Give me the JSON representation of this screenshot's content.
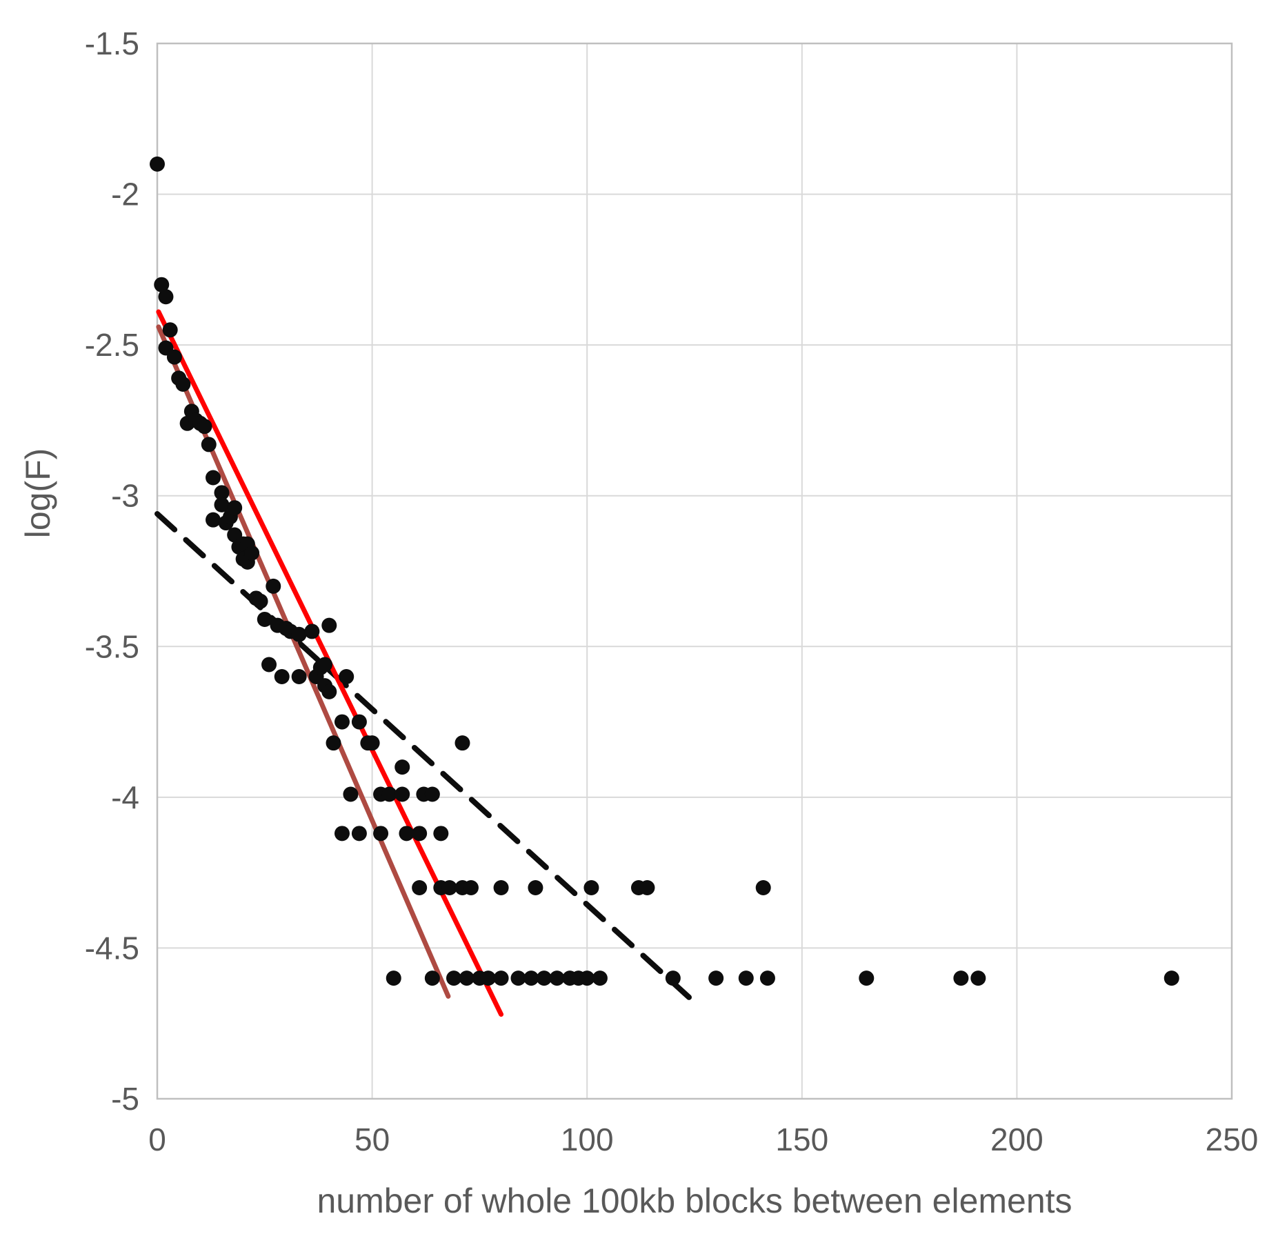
{
  "page": {
    "background_color": "#ffffff"
  },
  "chart_data": {
    "type": "scatter",
    "title": "",
    "xlabel": "number of whole 100kb blocks between elements",
    "ylabel": "log(F)",
    "xlim": [
      0,
      250
    ],
    "ylim": [
      -5,
      -1.5
    ],
    "x_ticks": {
      "values": [
        0,
        50,
        100,
        150,
        200,
        250
      ],
      "labels": [
        "0",
        "50",
        "100",
        "150",
        "200",
        "250"
      ]
    },
    "y_ticks": {
      "values": [
        -1.5,
        -2,
        -2.5,
        -3,
        -3.5,
        -4,
        -4.5,
        -5
      ],
      "labels": [
        "-1.5",
        "-2",
        "-2.5",
        "-3",
        "-3.5",
        "-4",
        "-4.5",
        "-5"
      ]
    },
    "grid": true,
    "legend_position": "none",
    "colors": {
      "point": "#0d0d0d",
      "grid": "#d9d9d9",
      "plot_border": "#bfbfbf",
      "label": "#595959",
      "red_line": "#ff0000",
      "dark_red_line": "#ae4a42",
      "dashed_line": "#0d0d0d"
    },
    "point_radius": 11,
    "points": [
      [
        0,
        -1.9
      ],
      [
        1,
        -2.3
      ],
      [
        2,
        -2.34
      ],
      [
        2,
        -2.51
      ],
      [
        3,
        -2.45
      ],
      [
        4,
        -2.54
      ],
      [
        5,
        -2.61
      ],
      [
        6,
        -2.63
      ],
      [
        7,
        -2.76
      ],
      [
        8,
        -2.72
      ],
      [
        9,
        -2.75
      ],
      [
        10,
        -2.76
      ],
      [
        11,
        -2.77
      ],
      [
        12,
        -2.83
      ],
      [
        13,
        -2.94
      ],
      [
        13,
        -3.08
      ],
      [
        15,
        -2.99
      ],
      [
        15,
        -3.03
      ],
      [
        16,
        -3.09
      ],
      [
        17,
        -3.07
      ],
      [
        18,
        -3.04
      ],
      [
        18,
        -3.13
      ],
      [
        19,
        -3.17
      ],
      [
        20,
        -3.16
      ],
      [
        20,
        -3.21
      ],
      [
        21,
        -3.16
      ],
      [
        21,
        -3.22
      ],
      [
        22,
        -3.19
      ],
      [
        23,
        -3.34
      ],
      [
        24,
        -3.35
      ],
      [
        25,
        -3.41
      ],
      [
        26,
        -3.56
      ],
      [
        27,
        -3.3
      ],
      [
        28,
        -3.43
      ],
      [
        29,
        -3.6
      ],
      [
        30,
        -3.44
      ],
      [
        31,
        -3.45
      ],
      [
        33,
        -3.46
      ],
      [
        33,
        -3.6
      ],
      [
        36,
        -3.45
      ],
      [
        37,
        -3.6
      ],
      [
        38,
        -3.57
      ],
      [
        39,
        -3.56
      ],
      [
        39,
        -3.63
      ],
      [
        40,
        -3.43
      ],
      [
        40,
        -3.65
      ],
      [
        41,
        -3.82
      ],
      [
        43,
        -3.75
      ],
      [
        43,
        -4.12
      ],
      [
        44,
        -3.6
      ],
      [
        45,
        -3.99
      ],
      [
        47,
        -3.75
      ],
      [
        47,
        -4.12
      ],
      [
        49,
        -3.82
      ],
      [
        50,
        -3.82
      ],
      [
        52,
        -3.99
      ],
      [
        52,
        -4.12
      ],
      [
        54,
        -3.99
      ],
      [
        55,
        -4.6
      ],
      [
        57,
        -3.9
      ],
      [
        57,
        -3.99
      ],
      [
        58,
        -4.12
      ],
      [
        61,
        -4.12
      ],
      [
        61,
        -4.3
      ],
      [
        62,
        -3.99
      ],
      [
        64,
        -3.99
      ],
      [
        64,
        -4.6
      ],
      [
        66,
        -4.12
      ],
      [
        66,
        -4.3
      ],
      [
        68,
        -4.3
      ],
      [
        69,
        -4.6
      ],
      [
        71,
        -3.82
      ],
      [
        71,
        -4.3
      ],
      [
        72,
        -4.6
      ],
      [
        73,
        -4.3
      ],
      [
        75,
        -4.6
      ],
      [
        77,
        -4.6
      ],
      [
        80,
        -4.3
      ],
      [
        80,
        -4.6
      ],
      [
        84,
        -4.6
      ],
      [
        87,
        -4.6
      ],
      [
        88,
        -4.3
      ],
      [
        90,
        -4.6
      ],
      [
        93,
        -4.6
      ],
      [
        96,
        -4.6
      ],
      [
        98,
        -4.6
      ],
      [
        100,
        -4.6
      ],
      [
        101,
        -4.3
      ],
      [
        103,
        -4.6
      ],
      [
        112,
        -4.3
      ],
      [
        114,
        -4.3
      ],
      [
        120,
        -4.6
      ],
      [
        130,
        -4.6
      ],
      [
        137,
        -4.6
      ],
      [
        141,
        -4.3
      ],
      [
        142,
        -4.6
      ],
      [
        165,
        -4.6
      ],
      [
        187,
        -4.6
      ],
      [
        191,
        -4.6
      ],
      [
        236,
        -4.6
      ]
    ],
    "trend_lines": [
      {
        "name": "dashed-black-fit-line",
        "style": "dashed",
        "color": "#0d0d0d",
        "width": 8,
        "x": [
          0,
          125
        ],
        "y": [
          -3.06,
          -4.68
        ]
      },
      {
        "name": "dark-red-fit-line",
        "style": "solid",
        "color": "#ae4a42",
        "width": 7,
        "x": [
          0.3,
          67.7
        ],
        "y": [
          -2.44,
          -4.66
        ]
      },
      {
        "name": "red-fit-line",
        "style": "solid",
        "color": "#ff0000",
        "width": 7,
        "x": [
          0.3,
          80
        ],
        "y": [
          -2.39,
          -4.72
        ]
      }
    ]
  }
}
